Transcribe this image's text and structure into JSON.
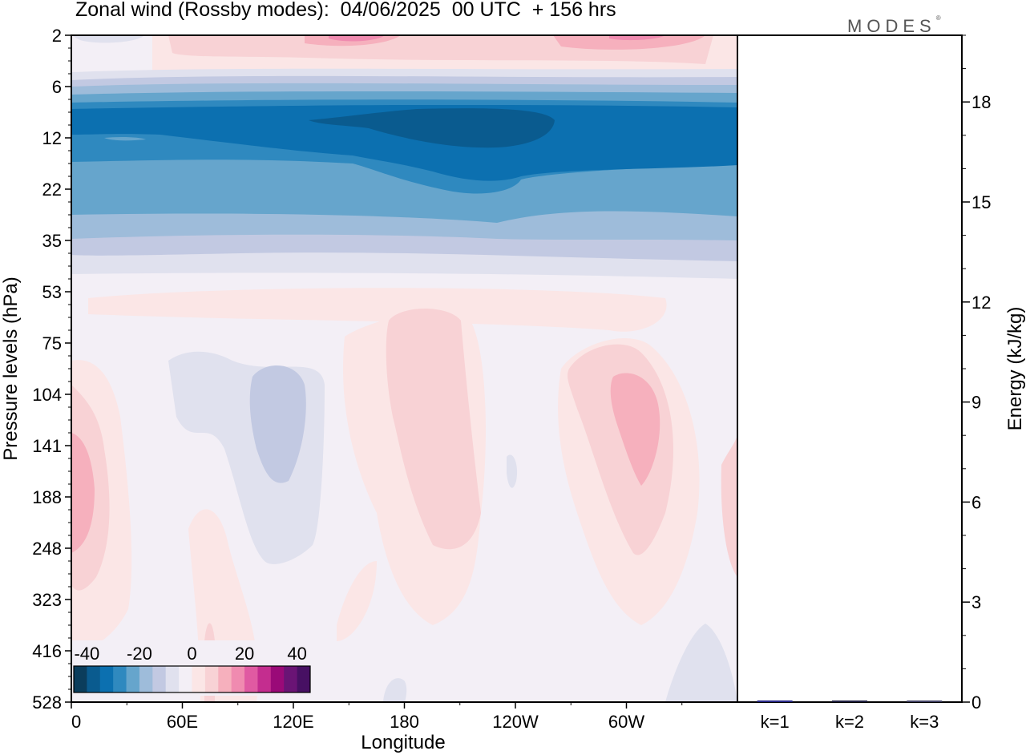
{
  "title": "Zonal wind (Rossby modes):  04/06/2025  00 UTC  + 156 hrs",
  "brand": {
    "text": "MODES",
    "mark": "®"
  },
  "colors": {
    "background": "#f3eff6",
    "palette": [
      "#0b3d5c",
      "#0a5b8f",
      "#0c70b0",
      "#2f89bf",
      "#66a5cc",
      "#9ebcda",
      "#c2c9e2",
      "#e0e1ee",
      "#f3eff6",
      "#fbe6e6",
      "#f8d2d5",
      "#f6b0bd",
      "#f08bb0",
      "#e05aa2",
      "#c42d8f",
      "#9a0a78",
      "#6a1475",
      "#471063"
    ]
  },
  "chart_data": [
    {
      "type": "heatmap",
      "title": "Zonal wind (Rossby modes):  04/06/2025  00 UTC  + 156 hrs",
      "xlabel": "Longitude",
      "ylabel": "Pressure levels (hPa)",
      "x_ticks": [
        "0",
        "60E",
        "120E",
        "180",
        "120W",
        "60W"
      ],
      "x_tick_values": [
        0,
        60,
        120,
        180,
        240,
        300
      ],
      "xlim": [
        0,
        360
      ],
      "y_ticks": [
        "2",
        "6",
        "12",
        "22",
        "35",
        "53",
        "75",
        "104",
        "141",
        "188",
        "248",
        "323",
        "416",
        "528"
      ],
      "y_scale": "categorical pressure levels, top = 2 hPa",
      "colorbar": {
        "ticks": [
          "-40",
          "-20",
          "0",
          "20",
          "40"
        ],
        "range": [
          -45,
          45
        ],
        "step": 5,
        "placement": "bottom-left inside plot"
      },
      "features": [
        {
          "region": "6-35 hPa, all longitudes",
          "value": -30,
          "note": "strong easterly band, core near 12 hPa, 150E-90W"
        },
        {
          "region": "2 hPa",
          "value": 10,
          "note": "weak westerly near top"
        },
        {
          "region": "75-248 hPa near 180",
          "value": 10
        },
        {
          "region": "104-188 hPa near 50W",
          "value": 15
        },
        {
          "region": "104-248 hPa near 0",
          "value": 10
        },
        {
          "region": "104-248 hPa near 100E",
          "value": -10
        }
      ]
    },
    {
      "type": "bar",
      "categories": [
        "k=1",
        "k=2",
        "k=3"
      ],
      "values": [
        0.05,
        0.03,
        0.01
      ],
      "ylabel": "Energy (kJ/kg)",
      "ylim": [
        0,
        20
      ],
      "y_ticks": [
        "0",
        "3",
        "6",
        "9",
        "12",
        "15",
        "18"
      ],
      "colors": [
        "#2a2a8a",
        "#222244",
        "#444466"
      ]
    }
  ]
}
